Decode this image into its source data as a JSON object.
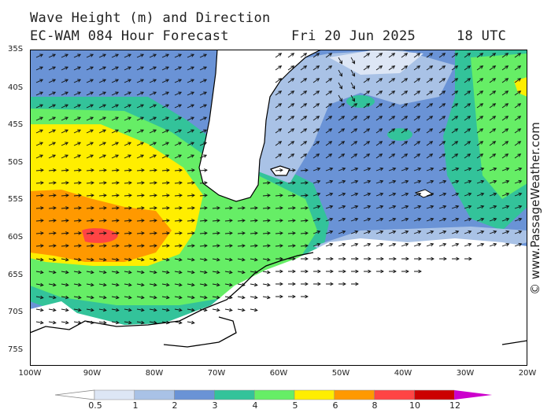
{
  "header": {
    "title": "Wave Height (m) and Direction",
    "model": "EC-WAM 084 Hour Forecast",
    "date": "Fri 20 Jun 2025",
    "time": "18 UTC"
  },
  "credit": "© www.PassageWeather.com",
  "axes": {
    "lat_labels": [
      "35S",
      "40S",
      "45S",
      "50S",
      "55S",
      "60S",
      "65S",
      "70S",
      "75S"
    ],
    "lon_labels": [
      "100W",
      "90W",
      "80W",
      "70W",
      "60W",
      "50W",
      "40W",
      "30W",
      "20W"
    ]
  },
  "legend": {
    "labels": [
      "0.5",
      "1",
      "2",
      "3",
      "4",
      "5",
      "6",
      "8",
      "10",
      "12"
    ],
    "colors": [
      "#ffffff",
      "#dde6f5",
      "#a9c2e6",
      "#6a93d6",
      "#33c39a",
      "#66ee66",
      "#ffee00",
      "#ff9900",
      "#ff4444",
      "#cc0000",
      "#cc00cc"
    ]
  },
  "palette": {
    "land": "#ffffff",
    "ice": "#ffffff",
    "coast": "#000000",
    "arrow": "#111111"
  }
}
